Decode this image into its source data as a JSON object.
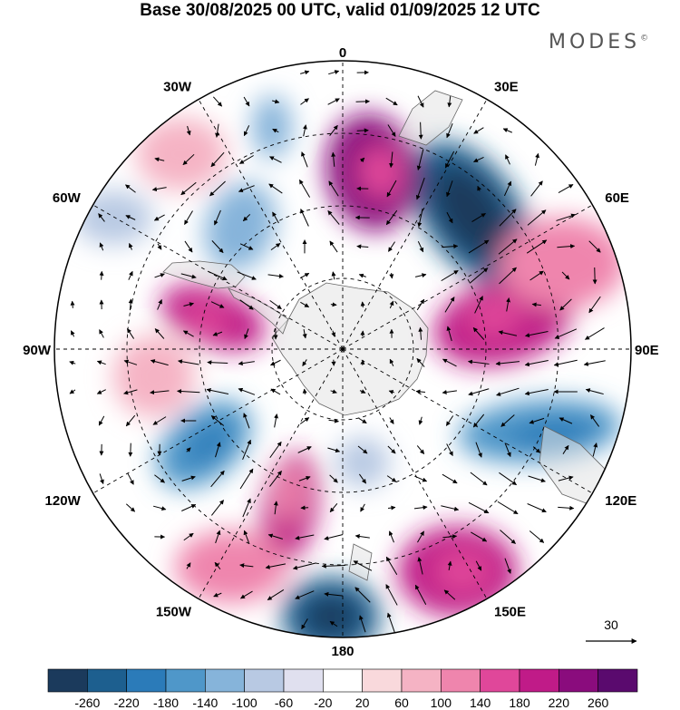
{
  "title": "Base 30/08/2025 00 UTC, valid 01/09/2025 12 UTC",
  "brand": {
    "name": "MODES",
    "mark": "©"
  },
  "map": {
    "projection": "south-polar-stereographic",
    "longitude_labels": [
      "0",
      "30E",
      "60E",
      "90E",
      "120E",
      "150E",
      "180",
      "150W",
      "120W",
      "90W",
      "60W",
      "30W"
    ]
  },
  "reference_vector": {
    "label": "30"
  },
  "colorbar": {
    "tick_labels": [
      "-260",
      "-220",
      "-180",
      "-140",
      "-100",
      "-60",
      "-20",
      "20",
      "60",
      "100",
      "140",
      "180",
      "220",
      "260"
    ],
    "colors": [
      "#1b3a5c",
      "#1d5f8f",
      "#2b7bb9",
      "#4f97c9",
      "#86b4da",
      "#b8c9e3",
      "#e0e0ef",
      "#ffffff",
      "#f9d9dc",
      "#f5b3c4",
      "#ef85ad",
      "#e0479a",
      "#c01b88",
      "#8a0c7d",
      "#5a0a6e"
    ]
  },
  "colors": {
    "land": "#e8e8e8",
    "antarctica": "#ececec",
    "grid": "#000000"
  }
}
